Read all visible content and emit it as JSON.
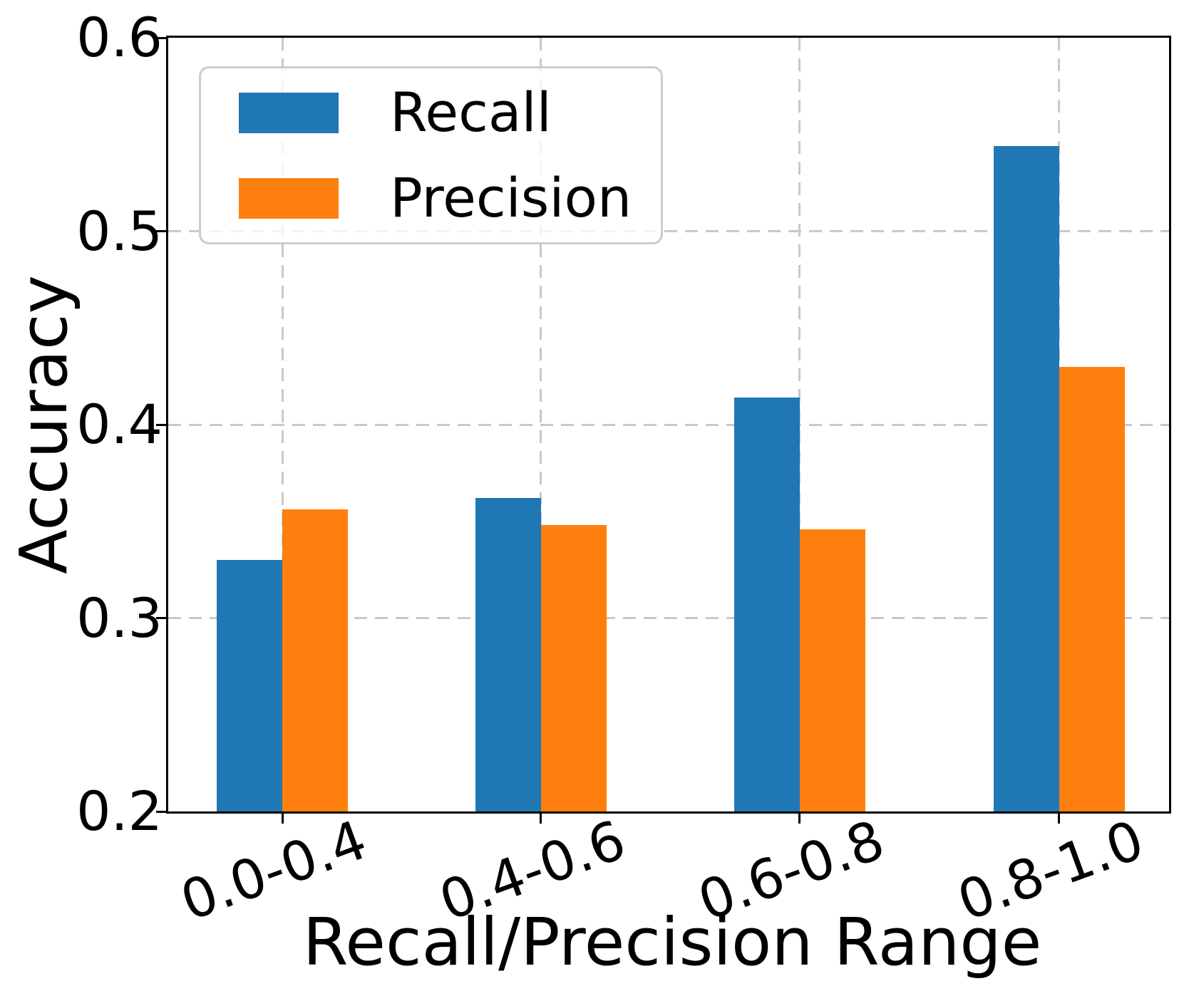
{
  "chart_data": {
    "type": "bar",
    "title": "",
    "xlabel": "Recall/Precision Range",
    "ylabel": "Accuracy",
    "categories": [
      "0.0-0.4",
      "0.4-0.6",
      "0.6-0.8",
      "0.8-1.0"
    ],
    "series": [
      {
        "name": "Recall",
        "color": "#1f77b4",
        "values": [
          0.33,
          0.362,
          0.414,
          0.544
        ]
      },
      {
        "name": "Precision",
        "color": "#ff7f0e",
        "values": [
          0.356,
          0.348,
          0.346,
          0.43
        ]
      }
    ],
    "ylim": [
      0.2,
      0.6
    ],
    "yticks": [
      0.2,
      0.3,
      0.4,
      0.5,
      0.6
    ],
    "ytick_labels": [
      "0.2",
      "0.3",
      "0.4",
      "0.5",
      "0.6"
    ],
    "xtick_rotation_deg": 20,
    "grid": true,
    "grid_style": "dashed",
    "legend_position": "upper left"
  },
  "legend": {
    "items": [
      {
        "label": "Recall",
        "color": "#1f77b4"
      },
      {
        "label": "Precision",
        "color": "#ff7f0e"
      }
    ]
  },
  "colors": {
    "recall_blue": "#1f77b4",
    "precision_orange": "#ff7f0e",
    "grid": "#c9c9c9",
    "axis": "#000000",
    "text": "#000000",
    "legend_border": "#cccccc",
    "background": "#ffffff"
  }
}
